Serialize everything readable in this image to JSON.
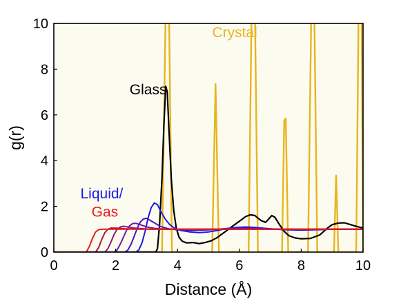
{
  "chart_data": {
    "type": "line",
    "xlabel": "Distance (Å)",
    "ylabel": "g(r)",
    "xlim": [
      0,
      10
    ],
    "ylim": [
      0,
      10
    ],
    "x_ticks": [
      "0",
      "2",
      "4",
      "6",
      "8",
      "10"
    ],
    "y_ticks": [
      "0",
      "2",
      "4",
      "6",
      "8",
      "10"
    ],
    "grid": false,
    "background_color": "#fcfbf0",
    "annotations": [
      {
        "text": "Crystal",
        "x": 5.85,
        "y": 9.4,
        "color": "#e8b41e"
      },
      {
        "text": "Glass",
        "x": 3.05,
        "y": 6.9,
        "color": "#000000"
      },
      {
        "text": "Liquid/",
        "x": 1.55,
        "y": 2.35,
        "color": "#1a1ae6"
      },
      {
        "text": "Gas",
        "x": 1.65,
        "y": 1.55,
        "color": "#e61a1a"
      }
    ],
    "series": [
      {
        "color": "#e8b41e",
        "width": 2.4,
        "points": [
          [
            0,
            0
          ],
          [
            3.5,
            0
          ],
          [
            3.62,
            11
          ],
          [
            3.72,
            11
          ],
          [
            3.82,
            0
          ],
          [
            5.12,
            0
          ],
          [
            5.23,
            7.35
          ],
          [
            5.34,
            0
          ],
          [
            6.3,
            0
          ],
          [
            6.4,
            11
          ],
          [
            6.5,
            11
          ],
          [
            6.6,
            0
          ],
          [
            7.38,
            0
          ],
          [
            7.45,
            5.75
          ],
          [
            7.5,
            5.85
          ],
          [
            7.58,
            0
          ],
          [
            8.22,
            0
          ],
          [
            8.33,
            11
          ],
          [
            8.42,
            11
          ],
          [
            8.52,
            0
          ],
          [
            9.06,
            0
          ],
          [
            9.13,
            3.35
          ],
          [
            9.2,
            0
          ],
          [
            9.78,
            0
          ],
          [
            9.86,
            11
          ],
          [
            9.95,
            11
          ],
          [
            10,
            0
          ]
        ]
      },
      {
        "color": "#000000",
        "width": 2.2,
        "points": [
          [
            0,
            0
          ],
          [
            3.3,
            0
          ],
          [
            3.35,
            0.15
          ],
          [
            3.42,
            1.2
          ],
          [
            3.5,
            3.3
          ],
          [
            3.56,
            5.6
          ],
          [
            3.62,
            7.25
          ],
          [
            3.67,
            7.0
          ],
          [
            3.72,
            5.4
          ],
          [
            3.8,
            3.2
          ],
          [
            3.88,
            1.8
          ],
          [
            3.96,
            1.05
          ],
          [
            4.05,
            0.65
          ],
          [
            4.15,
            0.48
          ],
          [
            4.3,
            0.4
          ],
          [
            4.5,
            0.42
          ],
          [
            4.7,
            0.37
          ],
          [
            4.9,
            0.42
          ],
          [
            5.1,
            0.5
          ],
          [
            5.3,
            0.65
          ],
          [
            5.55,
            0.9
          ],
          [
            5.8,
            1.15
          ],
          [
            6.0,
            1.35
          ],
          [
            6.2,
            1.55
          ],
          [
            6.35,
            1.63
          ],
          [
            6.5,
            1.6
          ],
          [
            6.7,
            1.38
          ],
          [
            6.85,
            1.3
          ],
          [
            6.95,
            1.45
          ],
          [
            7.05,
            1.6
          ],
          [
            7.15,
            1.52
          ],
          [
            7.3,
            1.2
          ],
          [
            7.45,
            0.9
          ],
          [
            7.6,
            0.72
          ],
          [
            7.8,
            0.62
          ],
          [
            8.0,
            0.58
          ],
          [
            8.3,
            0.6
          ],
          [
            8.6,
            0.75
          ],
          [
            8.85,
            1.05
          ],
          [
            9.0,
            1.2
          ],
          [
            9.2,
            1.27
          ],
          [
            9.4,
            1.28
          ],
          [
            9.6,
            1.2
          ],
          [
            9.8,
            1.12
          ],
          [
            10.0,
            1.05
          ]
        ]
      },
      {
        "color": "#1a1ae6",
        "width": 2.0,
        "points": [
          [
            0,
            0
          ],
          [
            2.65,
            0
          ],
          [
            2.75,
            0.1
          ],
          [
            2.85,
            0.4
          ],
          [
            2.95,
            0.9
          ],
          [
            3.05,
            1.5
          ],
          [
            3.15,
            1.95
          ],
          [
            3.25,
            2.15
          ],
          [
            3.35,
            2.08
          ],
          [
            3.45,
            1.8
          ],
          [
            3.6,
            1.45
          ],
          [
            3.75,
            1.2
          ],
          [
            3.9,
            1.05
          ],
          [
            4.1,
            0.95
          ],
          [
            4.4,
            0.88
          ],
          [
            4.7,
            0.85
          ],
          [
            5.0,
            0.88
          ],
          [
            5.3,
            0.95
          ],
          [
            5.6,
            1.03
          ],
          [
            5.9,
            1.08
          ],
          [
            6.2,
            1.1
          ],
          [
            6.5,
            1.08
          ],
          [
            6.9,
            1.03
          ],
          [
            7.4,
            0.98
          ],
          [
            8.0,
            0.96
          ],
          [
            8.6,
            0.98
          ],
          [
            9.2,
            1.01
          ],
          [
            10.0,
            1.0
          ]
        ]
      },
      {
        "color": "#4a12c8",
        "width": 2.0,
        "points": [
          [
            0,
            0
          ],
          [
            2.3,
            0
          ],
          [
            2.4,
            0.1
          ],
          [
            2.5,
            0.35
          ],
          [
            2.6,
            0.7
          ],
          [
            2.7,
            1.05
          ],
          [
            2.8,
            1.32
          ],
          [
            2.9,
            1.45
          ],
          [
            3.0,
            1.48
          ],
          [
            3.1,
            1.4
          ],
          [
            3.25,
            1.28
          ],
          [
            3.45,
            1.12
          ],
          [
            3.7,
            1.02
          ],
          [
            4.0,
            0.97
          ],
          [
            4.4,
            0.95
          ],
          [
            5.0,
            0.97
          ],
          [
            5.5,
            1.02
          ],
          [
            6.0,
            1.05
          ],
          [
            6.5,
            1.04
          ],
          [
            7.0,
            1.01
          ],
          [
            8.0,
            0.99
          ],
          [
            10.0,
            1.0
          ]
        ]
      },
      {
        "color": "#6a1aa8",
        "width": 2.0,
        "points": [
          [
            0,
            0
          ],
          [
            1.95,
            0
          ],
          [
            2.05,
            0.1
          ],
          [
            2.15,
            0.35
          ],
          [
            2.25,
            0.65
          ],
          [
            2.35,
            0.95
          ],
          [
            2.45,
            1.15
          ],
          [
            2.55,
            1.25
          ],
          [
            2.65,
            1.26
          ],
          [
            2.8,
            1.2
          ],
          [
            3.0,
            1.1
          ],
          [
            3.3,
            1.03
          ],
          [
            3.7,
            1.0
          ],
          [
            4.5,
            0.99
          ],
          [
            6.0,
            1.01
          ],
          [
            8.0,
            1.0
          ],
          [
            10.0,
            1.0
          ]
        ]
      },
      {
        "color": "#8a1a80",
        "width": 2.0,
        "points": [
          [
            0,
            0
          ],
          [
            1.65,
            0
          ],
          [
            1.75,
            0.15
          ],
          [
            1.85,
            0.45
          ],
          [
            1.95,
            0.78
          ],
          [
            2.05,
            1.0
          ],
          [
            2.15,
            1.1
          ],
          [
            2.25,
            1.13
          ],
          [
            2.4,
            1.1
          ],
          [
            2.6,
            1.05
          ],
          [
            3.0,
            1.01
          ],
          [
            4.0,
            1.0
          ],
          [
            10.0,
            1.0
          ]
        ]
      },
      {
        "color": "#b0143c",
        "width": 2.0,
        "points": [
          [
            0,
            0
          ],
          [
            1.35,
            0
          ],
          [
            1.45,
            0.2
          ],
          [
            1.55,
            0.55
          ],
          [
            1.65,
            0.85
          ],
          [
            1.75,
            1.0
          ],
          [
            1.85,
            1.05
          ],
          [
            2.0,
            1.05
          ],
          [
            2.3,
            1.02
          ],
          [
            3.0,
            1.0
          ],
          [
            10.0,
            1.0
          ]
        ]
      },
      {
        "color": "#e61a1a",
        "width": 2.0,
        "points": [
          [
            0,
            0
          ],
          [
            1.05,
            0
          ],
          [
            1.15,
            0.25
          ],
          [
            1.25,
            0.6
          ],
          [
            1.35,
            0.88
          ],
          [
            1.45,
            0.98
          ],
          [
            1.6,
            1.0
          ],
          [
            2.0,
            1.0
          ],
          [
            10.0,
            1.0
          ]
        ]
      }
    ]
  }
}
